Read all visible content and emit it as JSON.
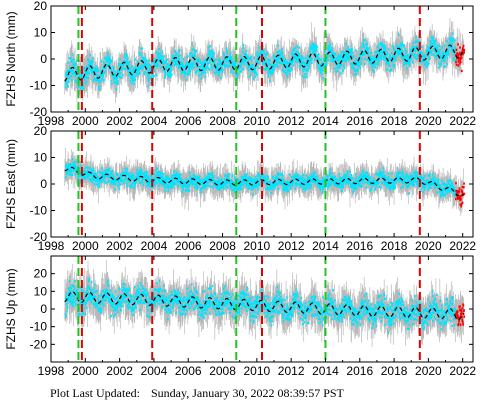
{
  "footer": {
    "label": "Plot Last Updated:",
    "timestamp": "Sunday, January 30, 2022 08:39:57 PST"
  },
  "colors": {
    "data": "#00e5ff",
    "error_bars": "#b8b8b8",
    "model": "#000000",
    "recent": "#ff0000",
    "offset_red": "#e00000",
    "offset_green": "#22c422"
  },
  "chart_data": [
    {
      "type": "scatter",
      "ylabel": "FZHS North (mm)",
      "xlim": [
        1998,
        2022.6
      ],
      "ylim": [
        -20,
        20
      ],
      "xticks": [
        "1998",
        "2000",
        "2002",
        "2004",
        "2006",
        "2008",
        "2010",
        "2012",
        "2014",
        "2016",
        "2018",
        "2020",
        "2022"
      ],
      "yticks": [
        "-20",
        "-10",
        "0",
        "10",
        "20"
      ],
      "model_trend": {
        "x": [
          1998.8,
          2005,
          2010,
          2014,
          2019.5,
          2022
        ],
        "y": [
          -6,
          -2,
          -1.5,
          0,
          2,
          3
        ]
      },
      "model_amplitude": 2.5,
      "scatter_sd": 3.5,
      "error_sd": 4.5,
      "offset_lines": [
        {
          "x": 1999.6,
          "color": "green"
        },
        {
          "x": 1999.8,
          "color": "red"
        },
        {
          "x": 2003.9,
          "color": "red"
        },
        {
          "x": 2008.8,
          "color": "green"
        },
        {
          "x": 2010.3,
          "color": "red"
        },
        {
          "x": 2014.0,
          "color": "green"
        },
        {
          "x": 2019.5,
          "color": "red"
        }
      ]
    },
    {
      "type": "scatter",
      "ylabel": "FZHS East (mm)",
      "xlim": [
        1998,
        2022.6
      ],
      "ylim": [
        -20,
        20
      ],
      "xticks": [
        "1998",
        "2000",
        "2002",
        "2004",
        "2006",
        "2008",
        "2010",
        "2012",
        "2014",
        "2016",
        "2018",
        "2020",
        "2022"
      ],
      "yticks": [
        "-20",
        "-10",
        "0",
        "10",
        "20"
      ],
      "model_trend": {
        "x": [
          1998.8,
          2000.5,
          2004,
          2008,
          2014,
          2019.5,
          2022
        ],
        "y": [
          6,
          3,
          1.5,
          0.5,
          1,
          1.5,
          -4
        ]
      },
      "model_amplitude": 1.0,
      "scatter_sd": 2.5,
      "error_sd": 4.0,
      "offset_lines": [
        {
          "x": 1999.6,
          "color": "green"
        },
        {
          "x": 1999.8,
          "color": "red"
        },
        {
          "x": 2003.9,
          "color": "red"
        },
        {
          "x": 2008.8,
          "color": "green"
        },
        {
          "x": 2010.3,
          "color": "red"
        },
        {
          "x": 2014.0,
          "color": "green"
        },
        {
          "x": 2019.5,
          "color": "red"
        }
      ]
    },
    {
      "type": "scatter",
      "ylabel": "FZHS Up (mm)",
      "xlim": [
        1998,
        2022.6
      ],
      "ylim": [
        -30,
        30
      ],
      "xticks": [
        "1998",
        "2000",
        "2002",
        "2004",
        "2006",
        "2008",
        "2010",
        "2012",
        "2014",
        "2016",
        "2018",
        "2020",
        "2022"
      ],
      "yticks": [
        "-20",
        "-10",
        "0",
        "10",
        "20"
      ],
      "model_trend": {
        "x": [
          1998.8,
          2004,
          2010,
          2016,
          2022
        ],
        "y": [
          7,
          5,
          2,
          -1,
          -3
        ]
      },
      "model_amplitude": 3.0,
      "scatter_sd": 6.0,
      "error_sd": 8.0,
      "offset_lines": [
        {
          "x": 1999.6,
          "color": "green"
        },
        {
          "x": 1999.8,
          "color": "red"
        },
        {
          "x": 2003.9,
          "color": "red"
        },
        {
          "x": 2008.8,
          "color": "green"
        },
        {
          "x": 2010.3,
          "color": "red"
        },
        {
          "x": 2014.0,
          "color": "green"
        },
        {
          "x": 2019.5,
          "color": "red"
        }
      ]
    }
  ]
}
